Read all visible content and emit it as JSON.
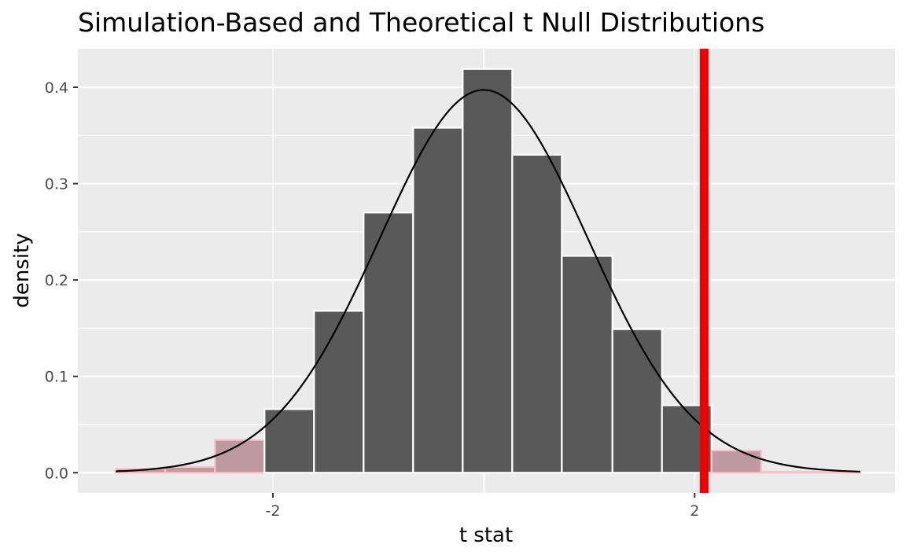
{
  "chart_data": {
    "type": "bar",
    "title": "Simulation-Based and Theoretical t Null Distributions",
    "xlabel": "t stat",
    "ylabel": "density",
    "xlim": [
      -3.85,
      3.9
    ],
    "ylim": [
      -0.021,
      0.44
    ],
    "grid": true,
    "x_ticks": [
      -2,
      2
    ],
    "x_tick_labels": [
      "-2",
      "2"
    ],
    "y_ticks": [
      0.0,
      0.1,
      0.2,
      0.3,
      0.4
    ],
    "y_tick_labels": [
      "0.0",
      "0.1",
      "0.2",
      "0.3",
      "0.4"
    ],
    "bin_width": 0.472,
    "bins": [
      {
        "x0": -3.49,
        "x1": -3.02,
        "density": 0.004,
        "shaded": true
      },
      {
        "x0": -3.02,
        "x1": -2.55,
        "density": 0.006,
        "shaded": true
      },
      {
        "x0": -2.55,
        "x1": -2.08,
        "density": 0.034,
        "shaded": true
      },
      {
        "x0": -2.08,
        "x1": -1.61,
        "density": 0.066,
        "shaded": false
      },
      {
        "x0": -1.61,
        "x1": -1.14,
        "density": 0.168,
        "shaded": false
      },
      {
        "x0": -1.14,
        "x1": -0.67,
        "density": 0.27,
        "shaded": false
      },
      {
        "x0": -0.67,
        "x1": -0.2,
        "density": 0.358,
        "shaded": false
      },
      {
        "x0": -0.2,
        "x1": 0.27,
        "density": 0.419,
        "shaded": false
      },
      {
        "x0": 0.27,
        "x1": 0.74,
        "density": 0.33,
        "shaded": false
      },
      {
        "x0": 0.74,
        "x1": 1.22,
        "density": 0.225,
        "shaded": false
      },
      {
        "x0": 1.22,
        "x1": 1.69,
        "density": 0.149,
        "shaded": false
      },
      {
        "x0": 1.69,
        "x1": 2.16,
        "density": 0.07,
        "shaded": false
      },
      {
        "x0": 2.16,
        "x1": 2.63,
        "density": 0.023,
        "shaded": true
      },
      {
        "x0": 2.63,
        "x1": 3.1,
        "density": 0.001,
        "shaded": true
      },
      {
        "x0": 3.1,
        "x1": 3.57,
        "density": 0.001,
        "shaded": true
      }
    ],
    "theoretical_curve": {
      "distribution": "t",
      "df": 60,
      "x_range": [
        -3.49,
        3.57
      ]
    },
    "observed_stat": 2.09,
    "colors": {
      "bar_fill": "#595959",
      "bar_stroke": "#ffffff",
      "shaded_fill": "#bd9aa1",
      "shaded_stroke": "#ffc0cb",
      "curve": "#000000",
      "obs_line": "#ee0000",
      "panel_bg": "#ebebeb",
      "grid": "#ffffff"
    }
  }
}
